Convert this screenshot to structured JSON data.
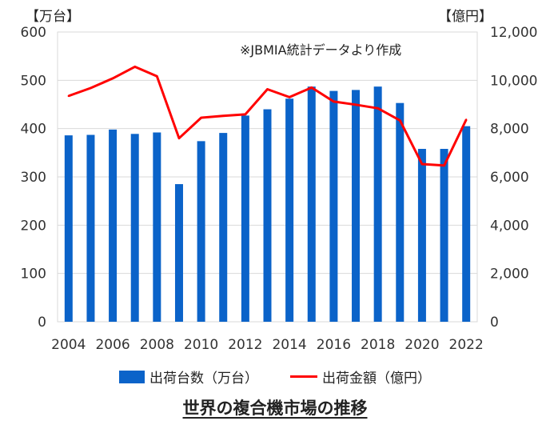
{
  "chart_data": {
    "type": "bar+line",
    "title": "世界の複合機市場の推移",
    "left_unit": "【万台】",
    "right_unit": "【億円】",
    "source_note": "※JBMIA統計データより作成",
    "years": [
      2004,
      2005,
      2006,
      2007,
      2008,
      2009,
      2010,
      2011,
      2012,
      2013,
      2014,
      2015,
      2016,
      2017,
      2018,
      2019,
      2020,
      2021,
      2022
    ],
    "x_tick_labels": [
      "2004",
      "2006",
      "2008",
      "2010",
      "2012",
      "2014",
      "2016",
      "2018",
      "2020",
      "2022"
    ],
    "y_left_ticks": [
      "0",
      "100",
      "200",
      "300",
      "400",
      "500",
      "600"
    ],
    "y_right_ticks": [
      "0",
      "2,000",
      "4,000",
      "6,000",
      "8,000",
      "10,000",
      "12,000"
    ],
    "ylim_left": [
      0,
      600
    ],
    "ylim_right": [
      0,
      12000
    ],
    "series": [
      {
        "name": "出荷台数（万台）",
        "type": "bar",
        "axis": "left",
        "color": "#0b63c9",
        "values": [
          386,
          387,
          398,
          389,
          392,
          285,
          374,
          391,
          427,
          440,
          462,
          487,
          478,
          480,
          487,
          453,
          358,
          358,
          405
        ]
      },
      {
        "name": "出荷金額（億円）",
        "type": "line",
        "axis": "right",
        "color": "#ff0000",
        "values": [
          9350,
          9680,
          10080,
          10560,
          10170,
          7600,
          8450,
          8530,
          8590,
          9630,
          9300,
          9700,
          9120,
          8990,
          8840,
          8340,
          6530,
          6470,
          8370
        ]
      }
    ],
    "grid": true,
    "legend_position": "bottom"
  }
}
